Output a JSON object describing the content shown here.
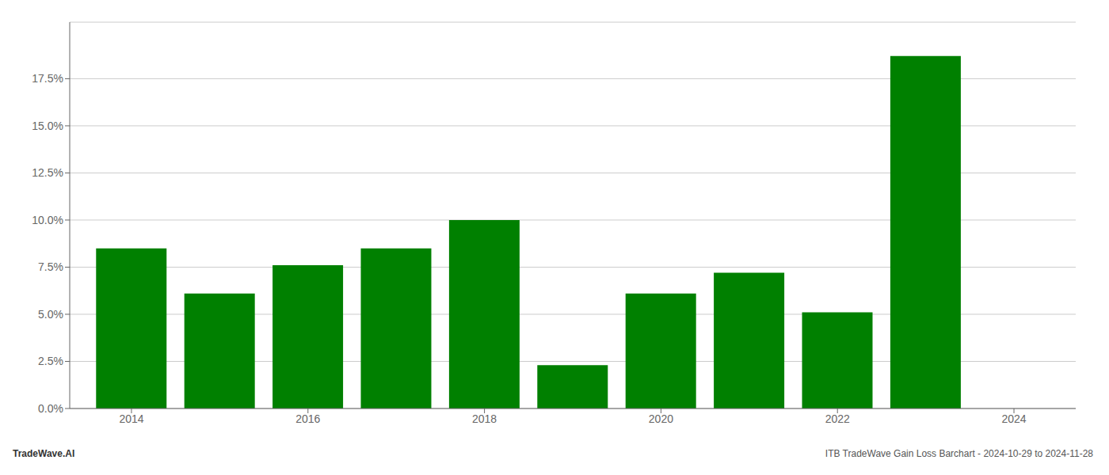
{
  "chart_data": {
    "type": "bar",
    "x": [
      2014,
      2015,
      2016,
      2017,
      2018,
      2019,
      2020,
      2021,
      2022,
      2023
    ],
    "values": [
      0.085,
      0.061,
      0.076,
      0.085,
      0.1,
      0.023,
      0.061,
      0.072,
      0.051,
      0.187
    ],
    "color": "#008000",
    "xlim": [
      2013.3,
      2024.7
    ],
    "xticks": [
      2014,
      2016,
      2018,
      2020,
      2022,
      2024
    ],
    "ylim": [
      0,
      0.205
    ],
    "yticks": [
      {
        "value": 0.0,
        "label": "0.0%"
      },
      {
        "value": 0.025,
        "label": "2.5%"
      },
      {
        "value": 0.05,
        "label": "5.0%"
      },
      {
        "value": 0.075,
        "label": "7.5%"
      },
      {
        "value": 0.1,
        "label": "10.0%"
      },
      {
        "value": 0.125,
        "label": "12.5%"
      },
      {
        "value": 0.15,
        "label": "15.0%"
      },
      {
        "value": 0.175,
        "label": "17.5%"
      }
    ],
    "grid": true,
    "annotations": [
      "TradeWave.AI",
      "ITB TradeWave Gain Loss Barchart - 2024-10-29 to 2024-11-28"
    ]
  }
}
